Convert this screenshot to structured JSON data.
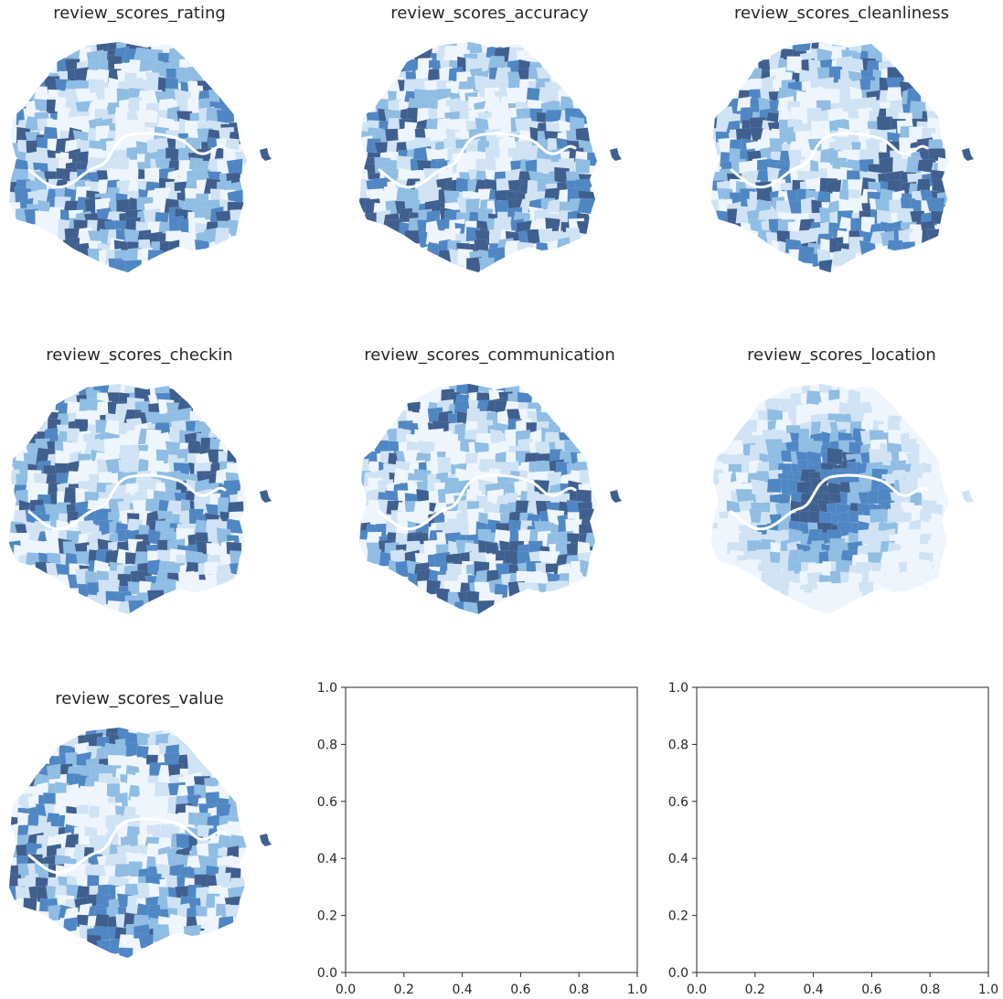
{
  "figure": {
    "colors": {
      "dark": "#3f5f8f",
      "mid": "#4f87c4",
      "light": "#8fbde3",
      "pale": "#d0e3f4",
      "faint": "#eef5fc",
      "river": "#ffffff",
      "axis": "#262626"
    },
    "map_panels": [
      {
        "title": "review_scores_rating",
        "seed": 11
      },
      {
        "title": "review_scores_accuracy",
        "seed": 23
      },
      {
        "title": "review_scores_cleanliness",
        "seed": 37
      },
      {
        "title": "review_scores_checkin",
        "seed": 41
      },
      {
        "title": "review_scores_communication",
        "seed": 53
      },
      {
        "title": "review_scores_location",
        "seed": 67,
        "pattern": "center-dark"
      },
      {
        "title": "review_scores_value",
        "seed": 79
      }
    ]
  },
  "chart_data": [
    {
      "type": "scatter",
      "title": "",
      "xlabel": "",
      "ylabel": "",
      "xlim": [
        0,
        1
      ],
      "ylim": [
        0,
        1
      ],
      "series": [],
      "xticks": [
        "0.0",
        "0.2",
        "0.4",
        "0.6",
        "0.8",
        "1.0"
      ],
      "yticks": [
        "0.0",
        "0.2",
        "0.4",
        "0.6",
        "0.8",
        "1.0"
      ],
      "grid": false
    },
    {
      "type": "scatter",
      "title": "",
      "xlabel": "",
      "ylabel": "",
      "xlim": [
        0,
        1
      ],
      "ylim": [
        0,
        1
      ],
      "series": [],
      "xticks": [
        "0.0",
        "0.2",
        "0.4",
        "0.6",
        "0.8",
        "1.0"
      ],
      "yticks": [
        "0.0",
        "0.2",
        "0.4",
        "0.6",
        "0.8",
        "1.0"
      ],
      "grid": false
    }
  ]
}
